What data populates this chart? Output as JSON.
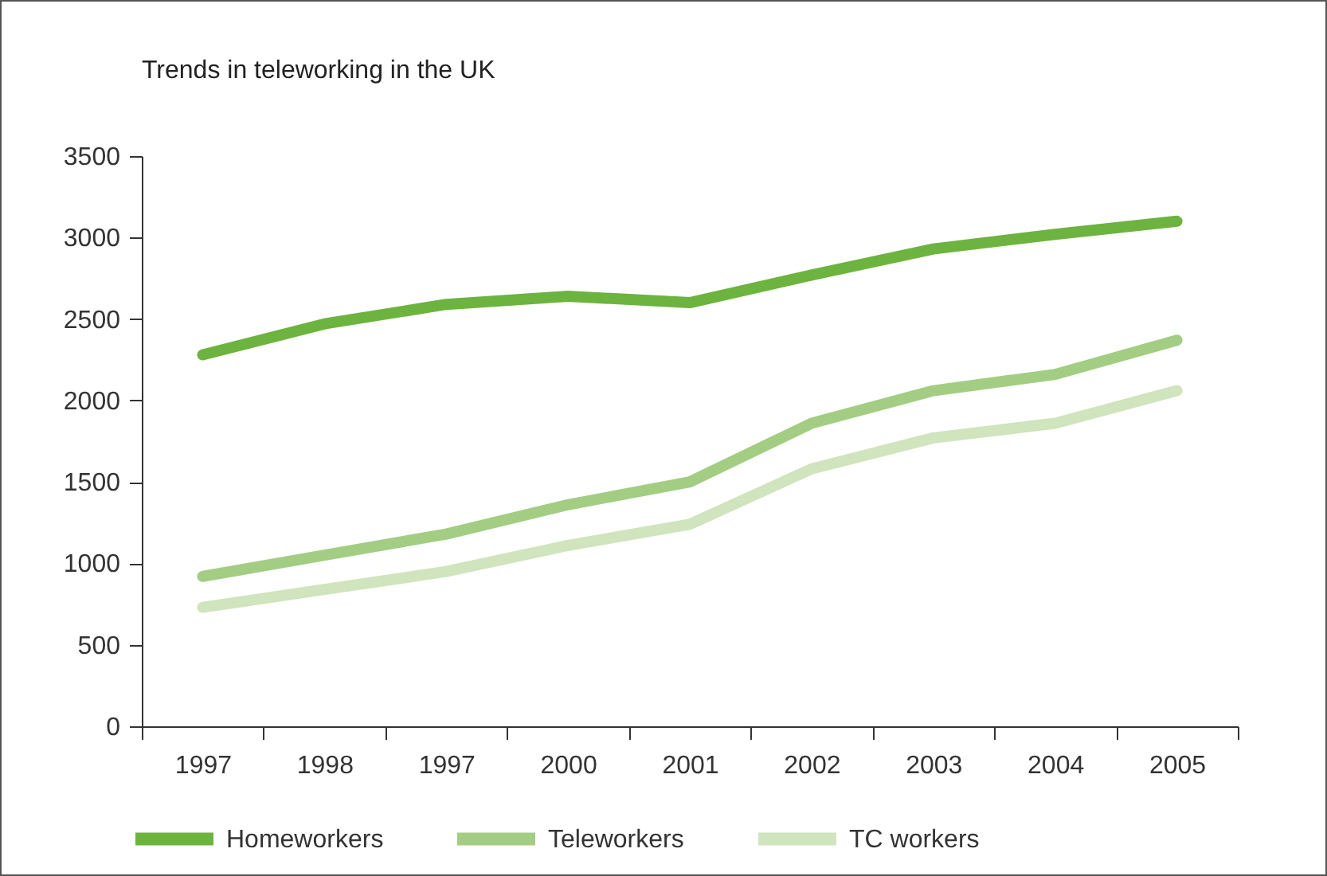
{
  "chart_data": {
    "type": "line",
    "title": "Trends in teleworking in the UK",
    "categories": [
      "1997",
      "1998",
      "1997",
      "2000",
      "2001",
      "2002",
      "2003",
      "2004",
      "2005"
    ],
    "series": [
      {
        "name": "Homeworkers",
        "color": "#6db33f",
        "values": [
          2280,
          2470,
          2590,
          2640,
          2600,
          2770,
          2930,
          3020,
          3100
        ]
      },
      {
        "name": "Teleworkers",
        "color": "#a3cd83",
        "values": [
          920,
          1050,
          1180,
          1360,
          1500,
          1860,
          2060,
          2160,
          2370
        ]
      },
      {
        "name": "TC workers",
        "color": "#d0e4bd",
        "values": [
          730,
          840,
          950,
          1110,
          1240,
          1580,
          1770,
          1860,
          2060
        ]
      }
    ],
    "ylim": [
      0,
      3500
    ],
    "yticks": [
      0,
      500,
      1000,
      1500,
      2000,
      2500,
      3000,
      3500
    ],
    "grid": false,
    "legend": "bottom",
    "marker": "none",
    "line_style": "solid"
  }
}
